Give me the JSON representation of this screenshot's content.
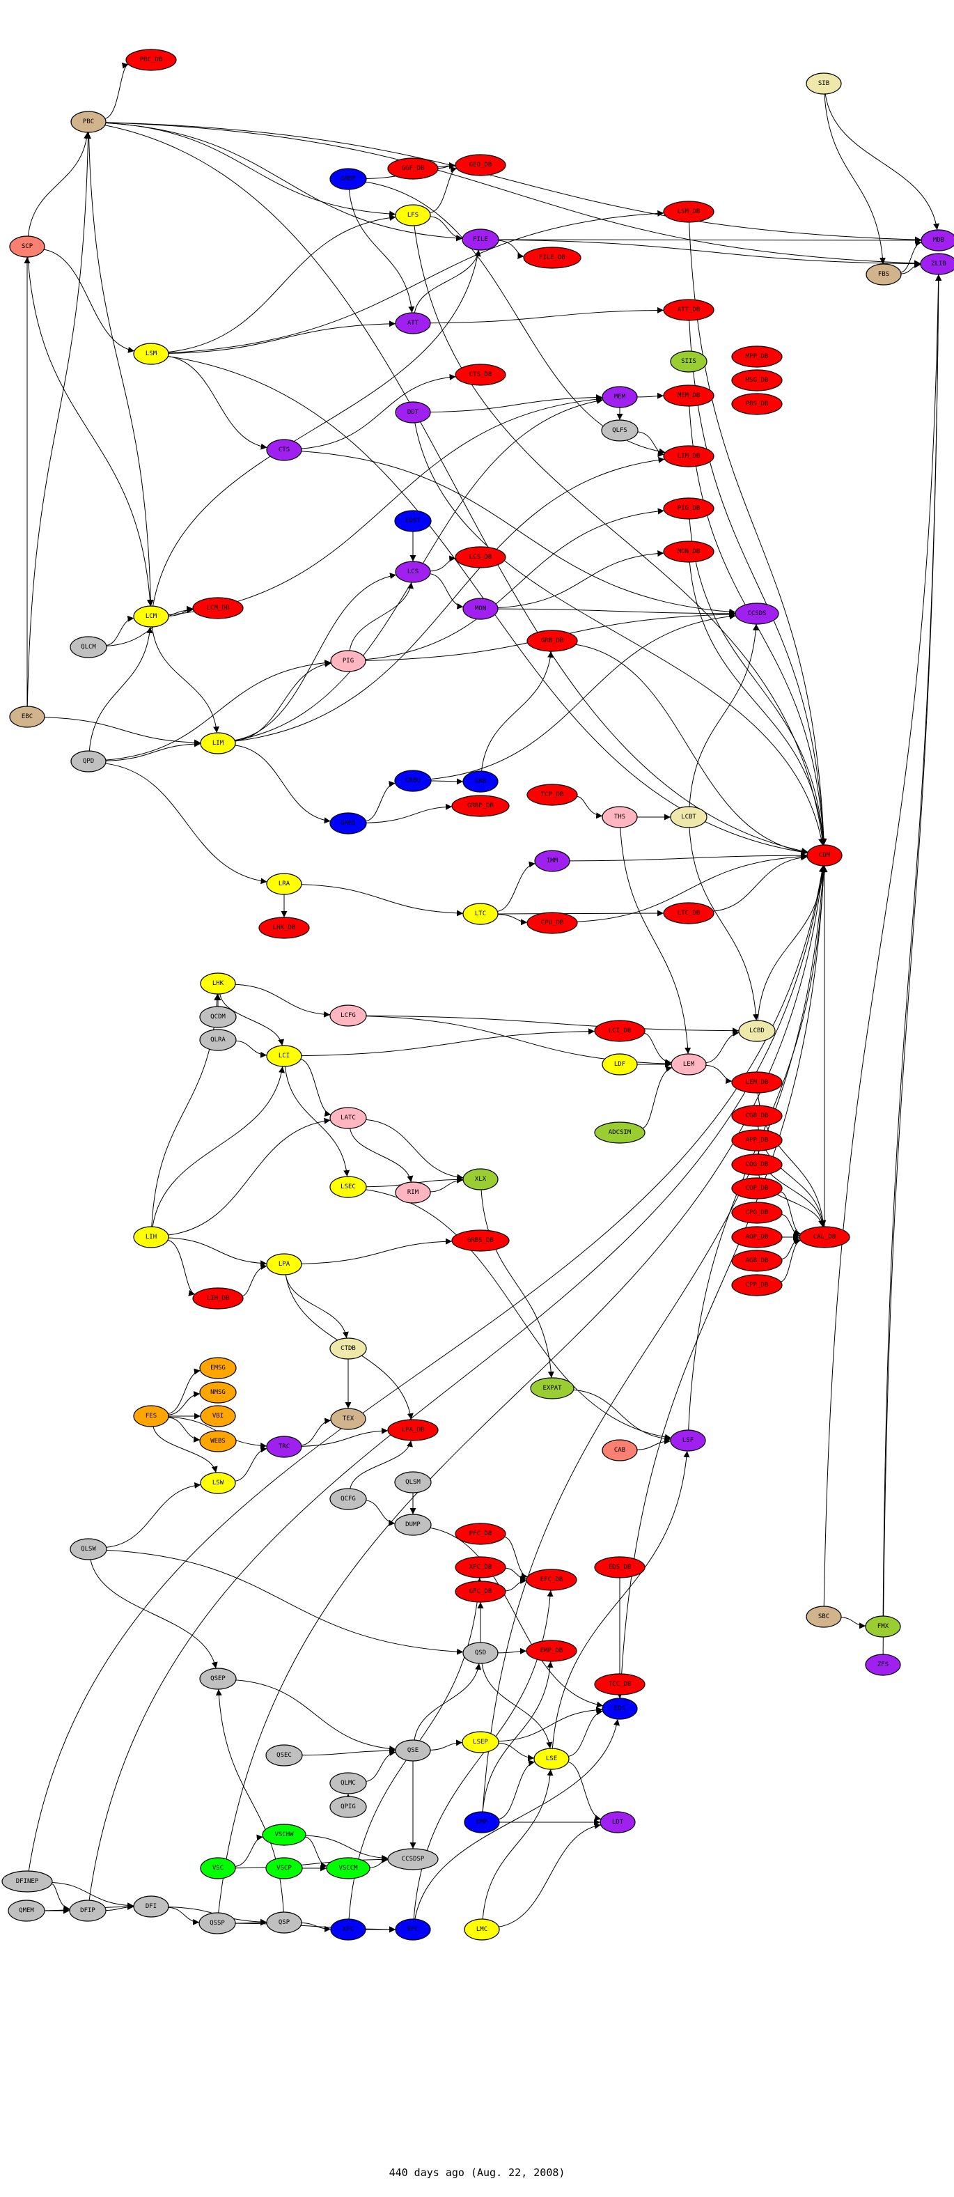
{
  "caption": "440 days ago (Aug. 22, 2008)",
  "palette": {
    "r": "#ff0000",
    "y": "#ffff00",
    "p": "#a020f0",
    "b": "#0000ff",
    "g": "#c0c0c0",
    "t": "#d2b48c",
    "s": "#fa8072",
    "k": "#ffb6c1",
    "h": "#eee8aa",
    "v": "#9acd32",
    "n": "#00ff00",
    "o": "#ffa500"
  },
  "nodes": [
    [
      "PBC_DB",
      217,
      86,
      "r"
    ],
    [
      "PBC",
      127,
      175,
      "t"
    ],
    [
      "SCP",
      39,
      354,
      "s"
    ],
    [
      "GRBP",
      500,
      257,
      "b"
    ],
    [
      "GGF_DB",
      593,
      242,
      "r"
    ],
    [
      "GEO_DB",
      690,
      237,
      "r"
    ],
    [
      "LFS",
      593,
      309,
      "y"
    ],
    [
      "FILE",
      690,
      344,
      "p"
    ],
    [
      "ATT",
      593,
      464,
      "p"
    ],
    [
      "LSM",
      217,
      508,
      "y"
    ],
    [
      "CTS_DB",
      690,
      538,
      "r"
    ],
    [
      "DDT",
      593,
      592,
      "p"
    ],
    [
      "CTS",
      408,
      646,
      "p"
    ],
    [
      "SIB",
      1183,
      120,
      "h"
    ],
    [
      "LSM_DB",
      989,
      304,
      "r"
    ],
    [
      "MDB",
      1348,
      345,
      "p"
    ],
    [
      "ZLIB",
      1348,
      379,
      "p"
    ],
    [
      "FILE_DB",
      793,
      370,
      "r"
    ],
    [
      "FBS",
      1269,
      394,
      "t"
    ],
    [
      "ATT_DB",
      989,
      445,
      "r"
    ],
    [
      "SIIS",
      989,
      519,
      "v"
    ],
    [
      "MPP_DB",
      1087,
      512,
      "r"
    ],
    [
      "MSG_DB",
      1087,
      546,
      "r"
    ],
    [
      "PBS_DB",
      1087,
      580,
      "r"
    ],
    [
      "MEM",
      890,
      570,
      "p"
    ],
    [
      "MEM_DB",
      989,
      568,
      "r"
    ],
    [
      "QLFS",
      890,
      618,
      "g"
    ],
    [
      "LIM_DB",
      989,
      655,
      "r"
    ],
    [
      "EDST",
      593,
      748,
      "b"
    ],
    [
      "LCS_DB",
      690,
      800,
      "r"
    ],
    [
      "LCS",
      593,
      821,
      "p"
    ],
    [
      "MON",
      690,
      874,
      "p"
    ],
    [
      "LCM",
      217,
      885,
      "y"
    ],
    [
      "LCM_DB",
      313,
      873,
      "r"
    ],
    [
      "QLCM",
      127,
      929,
      "g"
    ],
    [
      "PIG",
      500,
      949,
      "k"
    ],
    [
      "EBC",
      39,
      1029,
      "t"
    ],
    [
      "LIM",
      313,
      1067,
      "y"
    ],
    [
      "QPD",
      127,
      1093,
      "g"
    ],
    [
      "GRBU",
      593,
      1121,
      "b"
    ],
    [
      "GRB",
      690,
      1122,
      "b"
    ],
    [
      "GRBP_DB",
      690,
      1157,
      "r"
    ],
    [
      "GRBS",
      500,
      1182,
      "b"
    ],
    [
      "LRA",
      408,
      1269,
      "y"
    ],
    [
      "LTC",
      690,
      1312,
      "y"
    ],
    [
      "LHK_DB",
      408,
      1332,
      "r"
    ],
    [
      "PIG_DB",
      989,
      730,
      "r"
    ],
    [
      "MON_DB",
      989,
      792,
      "r"
    ],
    [
      "CCSDS",
      1087,
      881,
      "p"
    ],
    [
      "GRB_DB",
      793,
      920,
      "r"
    ],
    [
      "TCP_DB",
      793,
      1141,
      "r"
    ],
    [
      "THS",
      890,
      1173,
      "k"
    ],
    [
      "LCBT",
      989,
      1173,
      "h"
    ],
    [
      "CDM",
      1184,
      1228,
      "r"
    ],
    [
      "IMM",
      793,
      1236,
      "p"
    ],
    [
      "LTC_DB",
      989,
      1311,
      "r"
    ],
    [
      "CPU_DB",
      793,
      1325,
      "r"
    ],
    [
      "LHK",
      313,
      1412,
      "y"
    ],
    [
      "QCDM",
      313,
      1460,
      "g"
    ],
    [
      "LCFG",
      500,
      1458,
      "k"
    ],
    [
      "QLRA",
      313,
      1493,
      "g"
    ],
    [
      "LCI",
      408,
      1516,
      "y"
    ],
    [
      "LATC",
      500,
      1605,
      "k"
    ],
    [
      "XLX",
      690,
      1693,
      "v"
    ],
    [
      "LSEC",
      500,
      1704,
      "y"
    ],
    [
      "RIM",
      593,
      1712,
      "k"
    ],
    [
      "LIH",
      217,
      1776,
      "y"
    ],
    [
      "GRBS_DB",
      690,
      1781,
      "r"
    ],
    [
      "LPA",
      408,
      1815,
      "y"
    ],
    [
      "LIH_DB",
      313,
      1864,
      "r"
    ],
    [
      "CTDB",
      500,
      1936,
      "h"
    ],
    [
      "EMSG",
      313,
      1964,
      "o"
    ],
    [
      "NMSG",
      313,
      1999,
      "o"
    ],
    [
      "FES",
      217,
      2033,
      "o"
    ],
    [
      "VBI",
      313,
      2033,
      "o"
    ],
    [
      "TEX",
      500,
      2037,
      "t"
    ],
    [
      "LPA_DB",
      593,
      2053,
      "r"
    ],
    [
      "LCI_DB",
      890,
      1480,
      "r"
    ],
    [
      "LCBD",
      1087,
      1480,
      "h"
    ],
    [
      "LDF",
      890,
      1528,
      "y"
    ],
    [
      "LEM",
      989,
      1528,
      "k"
    ],
    [
      "LEM_DB",
      1087,
      1554,
      "r"
    ],
    [
      "CGB_DB",
      1087,
      1602,
      "r"
    ],
    [
      "APP_DB",
      1087,
      1637,
      "r"
    ],
    [
      "COG_DB",
      1087,
      1672,
      "r"
    ],
    [
      "COP_DB",
      1087,
      1706,
      "r"
    ],
    [
      "CPG_DB",
      1087,
      1741,
      "r"
    ],
    [
      "AOP_DB",
      1087,
      1776,
      "r"
    ],
    [
      "AGB_DB",
      1087,
      1810,
      "r"
    ],
    [
      "CPP_DB",
      1087,
      1845,
      "r"
    ],
    [
      "ADCSIM",
      890,
      1626,
      "v"
    ],
    [
      "CAL_DB",
      1184,
      1776,
      "r"
    ],
    [
      "EXPAT",
      793,
      1993,
      "v"
    ],
    [
      "WEBS",
      313,
      2069,
      "o"
    ],
    [
      "TRC",
      408,
      2077,
      "p"
    ],
    [
      "LSW",
      313,
      2129,
      "y"
    ],
    [
      "QLSM",
      593,
      2128,
      "g"
    ],
    [
      "QCFG",
      500,
      2152,
      "g"
    ],
    [
      "DUMP",
      593,
      2189,
      "g"
    ],
    [
      "PFC_DB",
      690,
      2202,
      "r"
    ],
    [
      "QLSW",
      127,
      2224,
      "g"
    ],
    [
      "XFC_DB",
      690,
      2250,
      "r"
    ],
    [
      "GFC_DB",
      690,
      2285,
      "r"
    ],
    [
      "QSD",
      690,
      2373,
      "g"
    ],
    [
      "QSEP",
      313,
      2410,
      "g"
    ],
    [
      "LSEP",
      690,
      2501,
      "y"
    ],
    [
      "QSE",
      593,
      2513,
      "g"
    ],
    [
      "QSEC",
      408,
      2520,
      "g"
    ],
    [
      "QLMC",
      500,
      2560,
      "g"
    ],
    [
      "QPIG",
      500,
      2594,
      "g"
    ],
    [
      "EMP",
      692,
      2616,
      "b"
    ],
    [
      "VSCHW",
      408,
      2634,
      "n"
    ],
    [
      "CCSDSP",
      593,
      2669,
      "g"
    ],
    [
      "VSC",
      313,
      2682,
      "n"
    ],
    [
      "VSCP",
      408,
      2682,
      "n"
    ],
    [
      "VSCCM",
      500,
      2682,
      "n"
    ],
    [
      "DFINEP",
      39,
      2701,
      "g"
    ],
    [
      "CAB",
      890,
      2082,
      "s"
    ],
    [
      "LSF",
      988,
      2068,
      "p"
    ],
    [
      "EFC_DB",
      792,
      2268,
      "r"
    ],
    [
      "EDS_DB",
      890,
      2250,
      "r"
    ],
    [
      "EMP_DB",
      792,
      2370,
      "r"
    ],
    [
      "TCC_DB",
      890,
      2418,
      "r"
    ],
    [
      "EDS",
      890,
      2453,
      "b"
    ],
    [
      "LSE",
      792,
      2525,
      "y"
    ],
    [
      "LDT",
      887,
      2616,
      "p"
    ],
    [
      "SBC",
      1183,
      2321,
      "t"
    ],
    [
      "FMX",
      1268,
      2335,
      "v"
    ],
    [
      "ZFS",
      1268,
      2390,
      "p"
    ],
    [
      "QMEM",
      38,
      2743,
      "g"
    ],
    [
      "DFIP",
      126,
      2743,
      "g"
    ],
    [
      "DFI",
      217,
      2737,
      "g"
    ],
    [
      "QSSP",
      312,
      2761,
      "g"
    ],
    [
      "QSP",
      408,
      2760,
      "g"
    ],
    [
      "XFC",
      500,
      2770,
      "b"
    ],
    [
      "EFC",
      593,
      2770,
      "b"
    ],
    [
      "LMC",
      692,
      2770,
      "y"
    ]
  ],
  "edges": [
    [
      "PBC",
      "PBC_DB"
    ],
    [
      "SCP",
      "PBC"
    ],
    [
      "SCP",
      "LSM"
    ],
    [
      "SCP",
      "LCM"
    ],
    [
      "PBC",
      "LFS"
    ],
    [
      "PBC",
      "FILE"
    ],
    [
      "PBC",
      "LCM"
    ],
    [
      "PBC",
      "MDB"
    ],
    [
      "PBC",
      "ZLIB"
    ],
    [
      "PBC",
      "CDM"
    ],
    [
      "GRBP",
      "ATT"
    ],
    [
      "GRBP",
      "GEO_DB"
    ],
    [
      "GRBP",
      "LIM_DB"
    ],
    [
      "GGF_DB",
      "GEO_DB"
    ],
    [
      "LFS",
      "FILE"
    ],
    [
      "LFS",
      "GEO_DB"
    ],
    [
      "LFS",
      "CDM"
    ],
    [
      "FILE",
      "FILE_DB"
    ],
    [
      "FILE",
      "MDB"
    ],
    [
      "FILE",
      "ZLIB"
    ],
    [
      "ATT",
      "ATT_DB"
    ],
    [
      "ATT",
      "FILE"
    ],
    [
      "LSM",
      "LSM_DB"
    ],
    [
      "LSM",
      "ATT"
    ],
    [
      "LSM",
      "LFS"
    ],
    [
      "LSM",
      "CTS"
    ],
    [
      "LSM",
      "CDM"
    ],
    [
      "CTS",
      "CTS_DB"
    ],
    [
      "CTS",
      "CCSDS"
    ],
    [
      "DDT",
      "MEM"
    ],
    [
      "DDT",
      "CDM"
    ],
    [
      "SIB",
      "FBS"
    ],
    [
      "SIB",
      "MDB"
    ],
    [
      "FBS",
      "MDB"
    ],
    [
      "FBS",
      "ZLIB"
    ],
    [
      "MEM",
      "MEM_DB"
    ],
    [
      "MEM",
      "QLFS"
    ],
    [
      "QLFS",
      "LIM_DB"
    ],
    [
      "LSM_DB",
      "CDM"
    ],
    [
      "ATT_DB",
      "CDM"
    ],
    [
      "MEM_DB",
      "CDM"
    ],
    [
      "EDST",
      "LCS"
    ],
    [
      "LCS",
      "LCS_DB"
    ],
    [
      "LCS",
      "MON"
    ],
    [
      "MON",
      "MON_DB"
    ],
    [
      "MON",
      "CCSDS"
    ],
    [
      "PIG",
      "LCS"
    ],
    [
      "PIG",
      "PIG_DB"
    ],
    [
      "PIG",
      "CCSDS"
    ],
    [
      "LCM",
      "LCM_DB"
    ],
    [
      "LCM",
      "LIM"
    ],
    [
      "LCM",
      "MEM"
    ],
    [
      "LCM",
      "FILE"
    ],
    [
      "QLCM",
      "LCM"
    ],
    [
      "QLCM",
      "LCM_DB"
    ],
    [
      "EBC",
      "LIM"
    ],
    [
      "EBC",
      "SCP"
    ],
    [
      "EBC",
      "PBC"
    ],
    [
      "QPD",
      "LIM"
    ],
    [
      "QPD",
      "LCM"
    ],
    [
      "QPD",
      "PIG"
    ],
    [
      "QPD",
      "LRA"
    ],
    [
      "LIM",
      "LIM_DB"
    ],
    [
      "LIM",
      "PIG"
    ],
    [
      "LIM",
      "GRBS"
    ],
    [
      "LIM",
      "LCS"
    ],
    [
      "LIM",
      "MEM"
    ],
    [
      "GRBS",
      "GRBU"
    ],
    [
      "GRBU",
      "GRB"
    ],
    [
      "GRB",
      "GRB_DB"
    ],
    [
      "GRBS",
      "GRBP_DB"
    ],
    [
      "GRBU",
      "CCSDS"
    ],
    [
      "LRA",
      "LHK_DB"
    ],
    [
      "LRA",
      "LTC"
    ],
    [
      "LTC",
      "LTC_DB"
    ],
    [
      "LTC",
      "IMM"
    ],
    [
      "LTC",
      "CPU_DB"
    ],
    [
      "TCP_DB",
      "THS"
    ],
    [
      "THS",
      "LCBT"
    ],
    [
      "THS",
      "LEM"
    ],
    [
      "LCBT",
      "CCSDS"
    ],
    [
      "LCBT",
      "LCBD"
    ],
    [
      "GRB_DB",
      "CDM"
    ],
    [
      "PIG_DB",
      "CDM"
    ],
    [
      "MON_DB",
      "CDM"
    ],
    [
      "LHK",
      "LCI"
    ],
    [
      "LHK",
      "LCFG"
    ],
    [
      "QCDM",
      "LHK"
    ],
    [
      "QLRA",
      "LCI"
    ],
    [
      "LCI",
      "LATC"
    ],
    [
      "LCI",
      "LCI_DB"
    ],
    [
      "LCI",
      "LSEC"
    ],
    [
      "LCFG",
      "LEM"
    ],
    [
      "LATC",
      "XLX"
    ],
    [
      "LATC",
      "RIM"
    ],
    [
      "LSEC",
      "XLX"
    ],
    [
      "RIM",
      "XLX"
    ],
    [
      "LIH",
      "LIH_DB"
    ],
    [
      "LIH",
      "LPA"
    ],
    [
      "LIH",
      "LCI"
    ],
    [
      "LIH",
      "LATC"
    ],
    [
      "LIH",
      "LHK"
    ],
    [
      "LPA",
      "LPA_DB"
    ],
    [
      "LPA",
      "CTDB"
    ],
    [
      "LPA",
      "GRBS_DB"
    ],
    [
      "LIH_DB",
      "LPA"
    ],
    [
      "FES",
      "EMSG"
    ],
    [
      "FES",
      "NMSG"
    ],
    [
      "FES",
      "VBI"
    ],
    [
      "FES",
      "WEBS"
    ],
    [
      "FES",
      "LSW"
    ],
    [
      "FES",
      "TRC"
    ],
    [
      "TRC",
      "TEX"
    ],
    [
      "LSW",
      "TRC"
    ],
    [
      "QLSW",
      "LSW"
    ],
    [
      "QLSW",
      "QSEP"
    ],
    [
      "QLSW",
      "QSD"
    ],
    [
      "CTDB",
      "TEX"
    ],
    [
      "LDF",
      "LEM"
    ],
    [
      "LCI_DB",
      "LEM"
    ],
    [
      "ADCSIM",
      "LEM"
    ],
    [
      "LEM",
      "LCBD"
    ],
    [
      "LEM",
      "LEM_DB"
    ],
    [
      "LEM_DB",
      "CAL_DB"
    ],
    [
      "CGB_DB",
      "CAL_DB"
    ],
    [
      "APP_DB",
      "CAL_DB"
    ],
    [
      "COG_DB",
      "CAL_DB"
    ],
    [
      "COP_DB",
      "CAL_DB"
    ],
    [
      "CPG_DB",
      "CAL_DB"
    ],
    [
      "AOP_DB",
      "CAL_DB"
    ],
    [
      "AGB_DB",
      "CAL_DB"
    ],
    [
      "CPP_DB",
      "CAL_DB"
    ],
    [
      "LCBD",
      "CDM"
    ],
    [
      "CAL_DB",
      "CDM"
    ],
    [
      "XLX",
      "EXPAT"
    ],
    [
      "QCFG",
      "DUMP"
    ],
    [
      "QLSM",
      "DUMP"
    ],
    [
      "QCFG",
      "LPA_DB"
    ],
    [
      "PFC_DB",
      "EFC_DB"
    ],
    [
      "XFC_DB",
      "EFC_DB"
    ],
    [
      "GFC_DB",
      "EFC_DB"
    ],
    [
      "QSD",
      "EMP_DB"
    ],
    [
      "QSD",
      "LSE"
    ],
    [
      "QSD",
      "GFC_DB"
    ],
    [
      "EDS_DB",
      "EDS"
    ],
    [
      "TCC_DB",
      "EDS"
    ],
    [
      "LSE",
      "EDS"
    ],
    [
      "LSE",
      "LDT"
    ],
    [
      "EMP",
      "LDT"
    ],
    [
      "EMP",
      "LSE"
    ],
    [
      "EMP",
      "EMP_DB"
    ],
    [
      "LSEP",
      "LSE"
    ],
    [
      "LSEP",
      "EDS"
    ],
    [
      "QSEP",
      "QSE"
    ],
    [
      "QSEC",
      "QSE"
    ],
    [
      "QLMC",
      "QSE"
    ],
    [
      "QPIG",
      "QLMC"
    ],
    [
      "QSE",
      "QSD"
    ],
    [
      "QSE",
      "LSEP"
    ],
    [
      "VSC",
      "VSCHW"
    ],
    [
      "VSCHW",
      "VSCCM"
    ],
    [
      "VSCP",
      "VSCCM"
    ],
    [
      "VSCCM",
      "CCSDSP"
    ],
    [
      "VSCHW",
      "CCSDSP"
    ],
    [
      "VSC",
      "CCSDSP"
    ],
    [
      "DFINEP",
      "DFIP"
    ],
    [
      "DFINEP",
      "DFI"
    ],
    [
      "QMEM",
      "DFIP"
    ],
    [
      "QMEM",
      "DFI"
    ],
    [
      "DFIP",
      "DFI"
    ],
    [
      "DFI",
      "QSSP"
    ],
    [
      "DFI",
      "QSP"
    ],
    [
      "QSSP",
      "QSP"
    ],
    [
      "QSP",
      "XFC"
    ],
    [
      "XFC",
      "EFC"
    ],
    [
      "QSSP",
      "EFC"
    ],
    [
      "EFC",
      "EFC_DB"
    ],
    [
      "EFC",
      "EDS"
    ],
    [
      "LMC",
      "LDT"
    ],
    [
      "LMC",
      "LSE"
    ],
    [
      "XFC",
      "XFC_DB"
    ],
    [
      "QSP",
      "QSEP"
    ],
    [
      "SBC",
      "FMX"
    ],
    [
      "SBC",
      "ZLIB"
    ],
    [
      "FMX",
      "ZLIB"
    ],
    [
      "ZFS",
      "ZLIB"
    ],
    [
      "EMP",
      "CDM"
    ],
    [
      "EDS",
      "CDM"
    ],
    [
      "LSF",
      "CDM"
    ],
    [
      "CAB",
      "LSF"
    ],
    [
      "LSE",
      "LSF"
    ],
    [
      "EXPAT",
      "LSF"
    ],
    [
      "DFINEP",
      "CDM"
    ],
    [
      "DFIP",
      "CDM"
    ],
    [
      "QSSP",
      "CDM"
    ],
    [
      "IMM",
      "CDM"
    ],
    [
      "CPU_DB",
      "CDM"
    ],
    [
      "LTC_DB",
      "CDM"
    ],
    [
      "DUMP",
      "EDS"
    ],
    [
      "QSE",
      "CCSDSP"
    ],
    [
      "LSEC",
      "LSF"
    ],
    [
      "TRC",
      "LPA_DB"
    ],
    [
      "LCFG",
      "LCBD"
    ]
  ]
}
